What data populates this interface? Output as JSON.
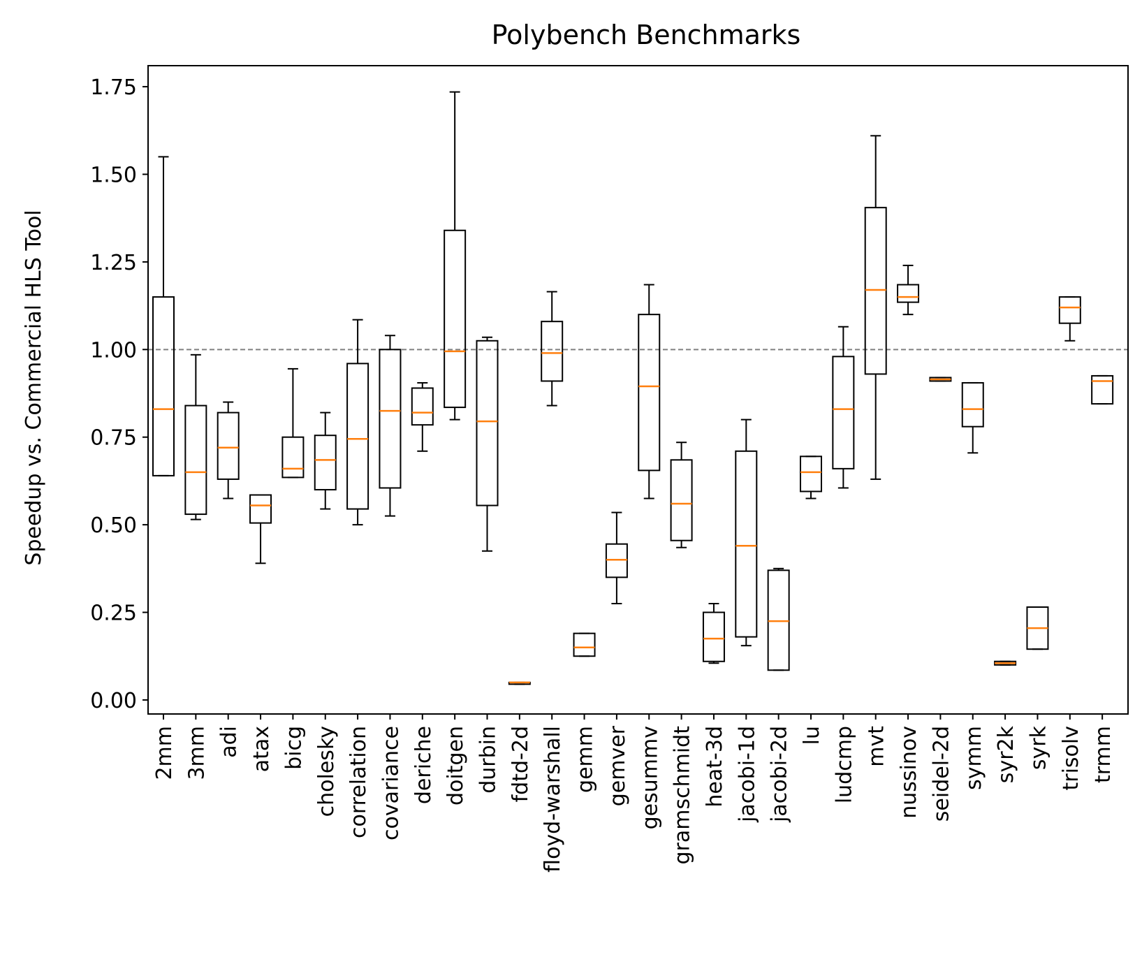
{
  "chart_data": {
    "type": "box",
    "title": "Polybench Benchmarks",
    "xlabel": "",
    "ylabel": "Speedup vs. Commercial HLS Tool",
    "ylim": [
      -0.04,
      1.81
    ],
    "yticks": [
      0.0,
      0.25,
      0.5,
      0.75,
      1.0,
      1.25,
      1.5,
      1.75
    ],
    "ytick_labels": [
      "0.00",
      "0.25",
      "0.50",
      "0.75",
      "1.00",
      "1.25",
      "1.50",
      "1.75"
    ],
    "reference_line": {
      "y": 1.0,
      "style": "dashed",
      "color": "#808080"
    },
    "colors": {
      "box": "#000000",
      "median": "#ff7f0e",
      "reference": "#808080"
    },
    "grid": false,
    "categories": [
      "2mm",
      "3mm",
      "adi",
      "atax",
      "bicg",
      "cholesky",
      "correlation",
      "covariance",
      "deriche",
      "doitgen",
      "durbin",
      "fdtd-2d",
      "floyd-warshall",
      "gemm",
      "gemver",
      "gesummv",
      "gramschmidt",
      "heat-3d",
      "jacobi-1d",
      "jacobi-2d",
      "lu",
      "ludcmp",
      "mvt",
      "nussinov",
      "seidel-2d",
      "symm",
      "syr2k",
      "syrk",
      "trisolv",
      "trmm"
    ],
    "boxes": [
      {
        "whislo": 0.64,
        "q1": 0.64,
        "med": 0.83,
        "q3": 1.15,
        "whishi": 1.55
      },
      {
        "whislo": 0.515,
        "q1": 0.53,
        "med": 0.65,
        "q3": 0.84,
        "whishi": 0.985
      },
      {
        "whislo": 0.575,
        "q1": 0.63,
        "med": 0.72,
        "q3": 0.82,
        "whishi": 0.85
      },
      {
        "whislo": 0.39,
        "q1": 0.505,
        "med": 0.555,
        "q3": 0.585,
        "whishi": 0.585
      },
      {
        "whislo": 0.635,
        "q1": 0.635,
        "med": 0.66,
        "q3": 0.75,
        "whishi": 0.945
      },
      {
        "whislo": 0.545,
        "q1": 0.6,
        "med": 0.685,
        "q3": 0.755,
        "whishi": 0.82
      },
      {
        "whislo": 0.5,
        "q1": 0.545,
        "med": 0.745,
        "q3": 0.96,
        "whishi": 1.085
      },
      {
        "whislo": 0.525,
        "q1": 0.605,
        "med": 0.825,
        "q3": 1.0,
        "whishi": 1.04
      },
      {
        "whislo": 0.71,
        "q1": 0.785,
        "med": 0.82,
        "q3": 0.89,
        "whishi": 0.905
      },
      {
        "whislo": 0.8,
        "q1": 0.835,
        "med": 0.995,
        "q3": 1.34,
        "whishi": 1.735
      },
      {
        "whislo": 0.425,
        "q1": 0.555,
        "med": 0.795,
        "q3": 1.025,
        "whishi": 1.035
      },
      {
        "whislo": 0.045,
        "q1": 0.045,
        "med": 0.05,
        "q3": 0.05,
        "whishi": 0.05
      },
      {
        "whislo": 0.84,
        "q1": 0.91,
        "med": 0.99,
        "q3": 1.08,
        "whishi": 1.165
      },
      {
        "whislo": 0.125,
        "q1": 0.125,
        "med": 0.15,
        "q3": 0.19,
        "whishi": 0.19
      },
      {
        "whislo": 0.275,
        "q1": 0.35,
        "med": 0.4,
        "q3": 0.445,
        "whishi": 0.535
      },
      {
        "whislo": 0.575,
        "q1": 0.655,
        "med": 0.895,
        "q3": 1.1,
        "whishi": 1.185
      },
      {
        "whislo": 0.435,
        "q1": 0.455,
        "med": 0.56,
        "q3": 0.685,
        "whishi": 0.735
      },
      {
        "whislo": 0.105,
        "q1": 0.11,
        "med": 0.175,
        "q3": 0.25,
        "whishi": 0.275
      },
      {
        "whislo": 0.155,
        "q1": 0.18,
        "med": 0.44,
        "q3": 0.71,
        "whishi": 0.8
      },
      {
        "whislo": 0.085,
        "q1": 0.085,
        "med": 0.225,
        "q3": 0.37,
        "whishi": 0.375
      },
      {
        "whislo": 0.575,
        "q1": 0.595,
        "med": 0.65,
        "q3": 0.695,
        "whishi": 0.695
      },
      {
        "whislo": 0.605,
        "q1": 0.66,
        "med": 0.83,
        "q3": 0.98,
        "whishi": 1.065
      },
      {
        "whislo": 0.63,
        "q1": 0.93,
        "med": 1.17,
        "q3": 1.405,
        "whishi": 1.61
      },
      {
        "whislo": 1.1,
        "q1": 1.135,
        "med": 1.15,
        "q3": 1.185,
        "whishi": 1.24
      },
      {
        "whislo": 0.91,
        "q1": 0.91,
        "med": 0.915,
        "q3": 0.92,
        "whishi": 0.92
      },
      {
        "whislo": 0.705,
        "q1": 0.78,
        "med": 0.83,
        "q3": 0.905,
        "whishi": 0.905
      },
      {
        "whislo": 0.1,
        "q1": 0.1,
        "med": 0.105,
        "q3": 0.11,
        "whishi": 0.11
      },
      {
        "whislo": 0.145,
        "q1": 0.145,
        "med": 0.205,
        "q3": 0.265,
        "whishi": 0.265
      },
      {
        "whislo": 1.025,
        "q1": 1.075,
        "med": 1.12,
        "q3": 1.15,
        "whishi": 1.15
      },
      {
        "whislo": 0.845,
        "q1": 0.845,
        "med": 0.91,
        "q3": 0.925,
        "whishi": 0.925
      }
    ]
  }
}
